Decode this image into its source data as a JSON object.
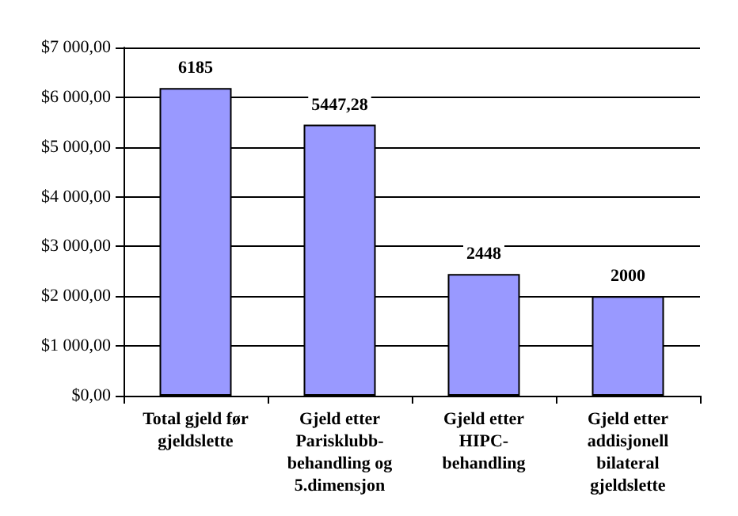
{
  "chart_data": {
    "type": "bar",
    "categories": [
      "Total gjeld før\ngjeldslette",
      "Gjeld etter\nParisklubb-\nbehandling og\n5.dimensjon",
      "Gjeld etter\nHIPC-\nbehandling",
      "Gjeld etter\naddisjonell\nbilateral\ngjeldslette"
    ],
    "values": [
      6185,
      5447.28,
      2448,
      2000
    ],
    "value_labels": [
      "6185",
      "5447,28",
      "2448",
      "2000"
    ],
    "color": "#9999ff",
    "ylim": [
      0,
      7000
    ],
    "yticks": [
      {
        "value": 0,
        "label": "$0,00"
      },
      {
        "value": 1000,
        "label": "$1 000,00"
      },
      {
        "value": 2000,
        "label": "$2 000,00"
      },
      {
        "value": 3000,
        "label": "$3 000,00"
      },
      {
        "value": 4000,
        "label": "$4 000,00"
      },
      {
        "value": 5000,
        "label": "$5 000,00"
      },
      {
        "value": 6000,
        "label": "$6 000,00"
      },
      {
        "value": 7000,
        "label": "$7 000,00"
      }
    ],
    "grid": "y"
  }
}
